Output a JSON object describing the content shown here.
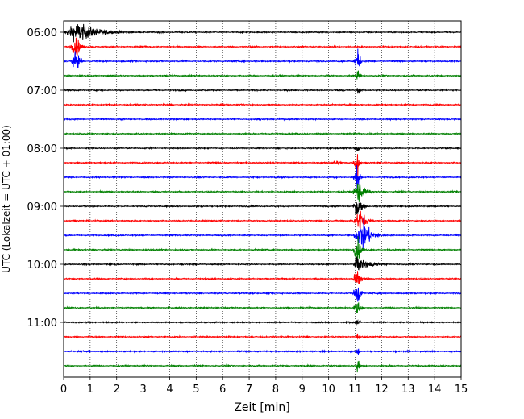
{
  "chart_data": {
    "type": "line",
    "title": "",
    "xlabel": "Zeit  [min]",
    "ylabel": "UTC (Lokalzeit = UTC + 01:00)",
    "xlim": [
      0,
      15
    ],
    "x_ticks": [
      "0",
      "1",
      "2",
      "3",
      "4",
      "5",
      "6",
      "7",
      "8",
      "9",
      "10",
      "11",
      "12",
      "13",
      "14",
      "15"
    ],
    "y_ticks": [
      "06:00",
      "07:00",
      "08:00",
      "09:00",
      "10:00",
      "11:00"
    ],
    "y_tick_rows": [
      0,
      4,
      8,
      12,
      16,
      20
    ],
    "grid": "vertical dotted",
    "row_count": 24,
    "row_interval_minutes": 15,
    "first_row_time": "06:00",
    "row_colors": [
      "#000000",
      "#ff0000",
      "#0000ff",
      "#008000"
    ],
    "noise_amplitude": 0.045,
    "events": [
      {
        "row": 0,
        "start": 0.0,
        "peak": 0.5,
        "end": 3.0,
        "amplitude": 1.0
      },
      {
        "row": 1,
        "start": 0.2,
        "peak": 0.5,
        "end": 0.9,
        "amplitude": 1.0
      },
      {
        "row": 2,
        "start": 0.2,
        "peak": 0.5,
        "end": 0.9,
        "amplitude": 0.9
      },
      {
        "row": 2,
        "start": 10.9,
        "peak": 11.15,
        "end": 11.3,
        "amplitude": 1.3
      },
      {
        "row": 3,
        "start": 11.0,
        "peak": 11.15,
        "end": 11.3,
        "amplitude": 0.7
      },
      {
        "row": 4,
        "start": 11.0,
        "peak": 11.15,
        "end": 11.3,
        "amplitude": 0.4
      },
      {
        "row": 8,
        "start": 10.9,
        "peak": 11.1,
        "end": 11.3,
        "amplitude": 0.5
      },
      {
        "row": 9,
        "start": 10.0,
        "peak": 10.3,
        "end": 10.8,
        "amplitude": 0.25
      },
      {
        "row": 9,
        "start": 10.9,
        "peak": 11.1,
        "end": 11.3,
        "amplitude": 1.3
      },
      {
        "row": 10,
        "start": 10.9,
        "peak": 11.1,
        "end": 11.3,
        "amplitude": 1.3
      },
      {
        "row": 11,
        "start": 10.9,
        "peak": 11.1,
        "end": 11.8,
        "amplitude": 1.3
      },
      {
        "row": 12,
        "start": 10.9,
        "peak": 11.1,
        "end": 11.6,
        "amplitude": 1.1
      },
      {
        "row": 13,
        "start": 10.9,
        "peak": 11.2,
        "end": 11.8,
        "amplitude": 1.2
      },
      {
        "row": 14,
        "start": 10.9,
        "peak": 11.3,
        "end": 12.3,
        "amplitude": 1.5
      },
      {
        "row": 15,
        "start": 10.9,
        "peak": 11.1,
        "end": 11.5,
        "amplitude": 1.2
      },
      {
        "row": 16,
        "start": 10.9,
        "peak": 11.1,
        "end": 12.6,
        "amplitude": 0.7
      },
      {
        "row": 17,
        "start": 10.9,
        "peak": 11.1,
        "end": 11.5,
        "amplitude": 1.2
      },
      {
        "row": 18,
        "start": 10.9,
        "peak": 11.1,
        "end": 11.4,
        "amplitude": 1.2
      },
      {
        "row": 19,
        "start": 10.9,
        "peak": 11.1,
        "end": 11.4,
        "amplitude": 0.8
      },
      {
        "row": 20,
        "start": 10.9,
        "peak": 11.1,
        "end": 11.4,
        "amplitude": 0.3
      },
      {
        "row": 21,
        "start": 11.0,
        "peak": 11.1,
        "end": 11.3,
        "amplitude": 0.4
      },
      {
        "row": 22,
        "start": 11.0,
        "peak": 11.1,
        "end": 11.3,
        "amplitude": 0.5
      },
      {
        "row": 23,
        "start": 11.0,
        "peak": 11.1,
        "end": 11.3,
        "amplitude": 0.9
      }
    ]
  }
}
